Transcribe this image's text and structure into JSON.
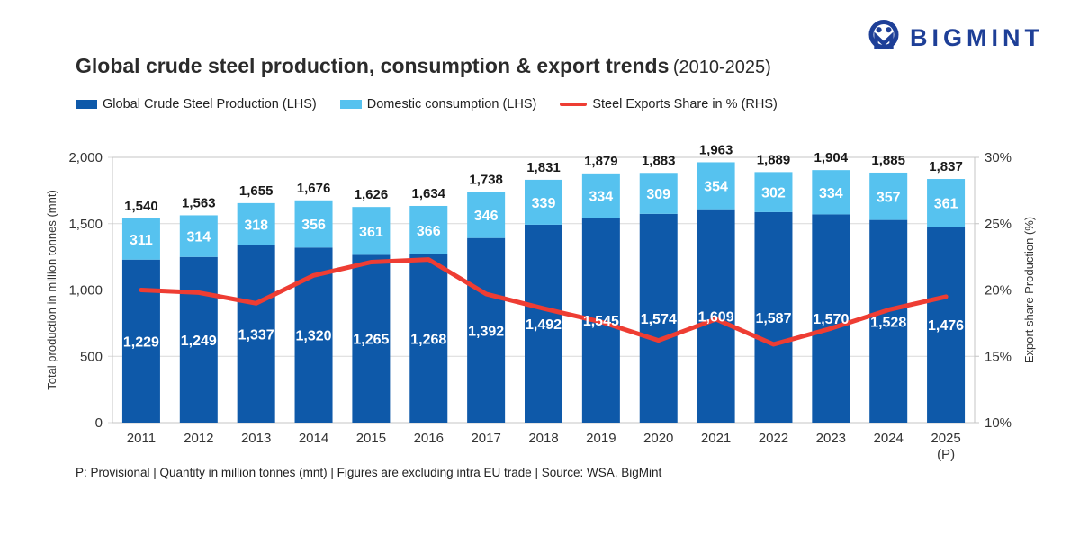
{
  "logo": {
    "text": "BIGMINT",
    "color": "#1e3f97"
  },
  "title": {
    "main": "Global crude steel production, consumption & export trends",
    "period": "(2010-2025)"
  },
  "legend": [
    {
      "label": "Global Crude Steel Production (LHS)",
      "color": "#0e59a9",
      "swatch": "box"
    },
    {
      "label": "Domestic consumption (LHS)",
      "color": "#56c2ef",
      "swatch": "box"
    },
    {
      "label": "Steel Exports Share in % (RHS)",
      "color": "#ee3d33",
      "swatch": "line"
    }
  ],
  "chart_data": {
    "type": "combo-stacked-bar-line",
    "title": "Global crude steel production, consumption & export trends (2010-2025)",
    "categories": [
      "2011",
      "2012",
      "2013",
      "2014",
      "2015",
      "2016",
      "2017",
      "2018",
      "2019",
      "2020",
      "2021",
      "2022",
      "2023",
      "2024",
      "2025"
    ],
    "category_sublabels": [
      "",
      "",
      "",
      "",
      "",
      "",
      "",
      "",
      "",
      "",
      "",
      "",
      "",
      "",
      "(P)"
    ],
    "series": [
      {
        "name": "Global Crude Steel Production (LHS)",
        "type": "bar-stack",
        "axis": "left",
        "color": "#0e59a9",
        "values": [
          1229,
          1249,
          1337,
          1320,
          1265,
          1268,
          1392,
          1492,
          1545,
          1574,
          1609,
          1587,
          1570,
          1528,
          1476
        ]
      },
      {
        "name": "Domestic consumption (LHS)",
        "type": "bar-stack",
        "axis": "left",
        "color": "#56c2ef",
        "values": [
          311,
          314,
          318,
          356,
          361,
          366,
          346,
          339,
          334,
          309,
          354,
          302,
          334,
          357,
          361
        ]
      },
      {
        "name": "Steel Exports Share in % (RHS)",
        "type": "line",
        "axis": "right",
        "color": "#ee3d33",
        "values": [
          20.0,
          19.8,
          19.0,
          21.1,
          22.1,
          22.3,
          19.7,
          18.6,
          17.6,
          16.2,
          17.8,
          15.9,
          17.1,
          18.5,
          19.5
        ]
      }
    ],
    "totals": [
      1540,
      1563,
      1655,
      1676,
      1626,
      1634,
      1738,
      1831,
      1879,
      1883,
      1963,
      1889,
      1904,
      1885,
      1837
    ],
    "left_axis": {
      "label": "Total production in million tonnes (mnt)",
      "tick_values": [
        0,
        500,
        1000,
        1500,
        2000
      ],
      "tick_labels": [
        "0",
        "500",
        "1,000",
        "1,500",
        "2,000"
      ],
      "min": 0,
      "max": 2000
    },
    "right_axis": {
      "label": "Export share Production (%)",
      "tick_values": [
        10,
        15,
        20,
        25,
        30
      ],
      "tick_labels": [
        "10%",
        "15%",
        "20%",
        "25%",
        "30%"
      ],
      "min": 10,
      "max": 30
    },
    "grid": true,
    "legend_position": "top",
    "grid_color": "#d9d9d9",
    "border_color": "#c4c4c4"
  },
  "footer": "P: Provisional | Quantity in million tonnes (mnt) | Figures are excluding intra EU trade | Source: WSA, BigMint"
}
